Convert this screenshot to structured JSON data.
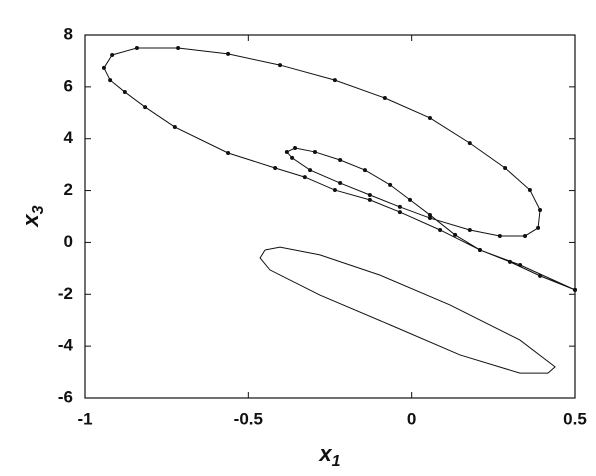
{
  "chart_data": {
    "type": "line",
    "xlabel": {
      "text": "x",
      "subscript": "1"
    },
    "ylabel": {
      "text": "x",
      "subscript": "3"
    },
    "xlim": [
      -1,
      0.5
    ],
    "xticks": [
      -1,
      -0.5,
      0,
      0.5
    ],
    "ylim": [
      -6,
      8
    ],
    "yticks": [
      -6,
      -4,
      -2,
      0,
      2,
      4,
      6,
      8
    ],
    "series": [
      {
        "color": "#111111",
        "marker": true,
        "x": [
          0.5,
          0.393,
          0.301,
          0.209,
          0.133,
          0.056,
          -0.005,
          -0.066,
          -0.143,
          -0.219,
          -0.296,
          -0.357,
          -0.382,
          -0.366,
          -0.311,
          -0.219,
          -0.128,
          -0.036,
          0.056,
          0.178,
          0.27,
          0.347,
          0.387,
          0.393,
          0.362,
          0.286,
          0.178,
          0.056,
          -0.082,
          -0.235,
          -0.403,
          -0.562,
          -0.715,
          -0.841,
          -0.917,
          -0.942,
          -0.923,
          -0.878,
          -0.816,
          -0.725,
          -0.562,
          -0.418,
          -0.327,
          -0.235,
          -0.128,
          -0.036,
          0.087,
          0.209,
          0.332,
          0.5
        ],
        "values": [
          -1.83,
          -1.29,
          -0.75,
          -0.29,
          0.29,
          1.06,
          1.64,
          2.22,
          2.79,
          3.18,
          3.49,
          3.64,
          3.49,
          3.26,
          2.79,
          2.29,
          1.83,
          1.37,
          0.94,
          0.48,
          0.25,
          0.25,
          0.56,
          1.25,
          2.02,
          2.87,
          3.83,
          4.8,
          5.57,
          6.26,
          6.84,
          7.27,
          7.5,
          7.5,
          7.23,
          6.73,
          6.26,
          5.8,
          5.22,
          4.45,
          3.45,
          2.87,
          2.52,
          2.02,
          1.64,
          1.17,
          0.48,
          -0.29,
          -0.87,
          -1.83
        ]
      },
      {
        "color": "#111111",
        "marker": false,
        "x": [
          -0.449,
          -0.403,
          -0.281,
          -0.097,
          0.117,
          0.331,
          0.439,
          0.417,
          0.331,
          0.148,
          -0.066,
          -0.281,
          -0.434,
          -0.464,
          -0.449
        ],
        "values": [
          -0.29,
          -0.18,
          -0.48,
          -1.26,
          -2.41,
          -3.76,
          -4.8,
          -5.04,
          -5.04,
          -4.34,
          -3.18,
          -2.03,
          -1.06,
          -0.6,
          -0.29
        ]
      }
    ]
  }
}
